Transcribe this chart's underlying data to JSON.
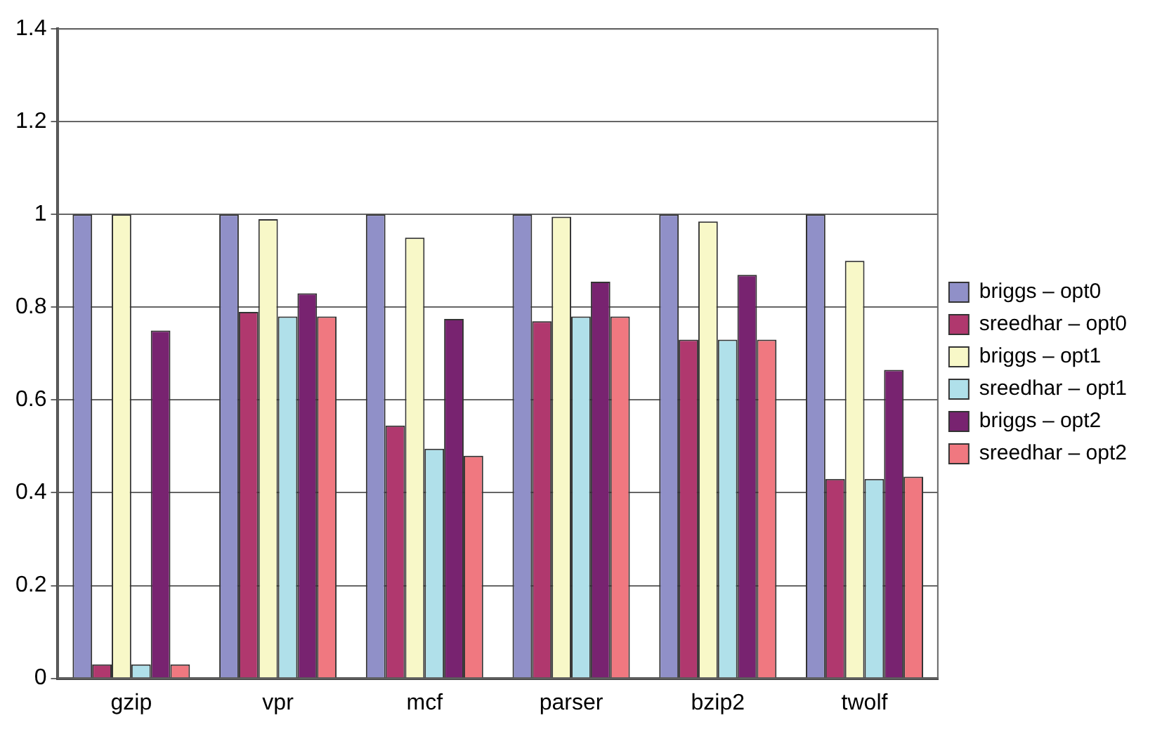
{
  "chart_data": {
    "type": "bar",
    "categories": [
      "gzip",
      "vpr",
      "mcf",
      "parser",
      "bzip2",
      "twolf"
    ],
    "series": [
      {
        "name": "briggs – opt0",
        "color": "#9090c8",
        "values": [
          1,
          1,
          1,
          1,
          1,
          1
        ]
      },
      {
        "name": "sreedhar – opt0",
        "color": "#b0386e",
        "values": [
          0.03,
          0.79,
          0.545,
          0.77,
          0.73,
          0.43
        ]
      },
      {
        "name": "briggs – opt1",
        "color": "#f8f8c8",
        "values": [
          1,
          0.99,
          0.95,
          0.995,
          0.985,
          0.9
        ]
      },
      {
        "name": "sreedhar – opt1",
        "color": "#b0e0ea",
        "values": [
          0.03,
          0.78,
          0.495,
          0.78,
          0.73,
          0.43
        ]
      },
      {
        "name": "briggs – opt2",
        "color": "#782370",
        "values": [
          0.75,
          0.83,
          0.775,
          0.855,
          0.87,
          0.665
        ]
      },
      {
        "name": "sreedhar – opt2",
        "color": "#f07880",
        "values": [
          0.03,
          0.78,
          0.48,
          0.78,
          0.73,
          0.435
        ]
      }
    ],
    "ylim": [
      0,
      1.4
    ],
    "yticks": [
      0,
      0.2,
      0.4,
      0.6,
      0.8,
      1,
      1.2,
      1.4
    ],
    "grid": "y",
    "legend": "right"
  }
}
